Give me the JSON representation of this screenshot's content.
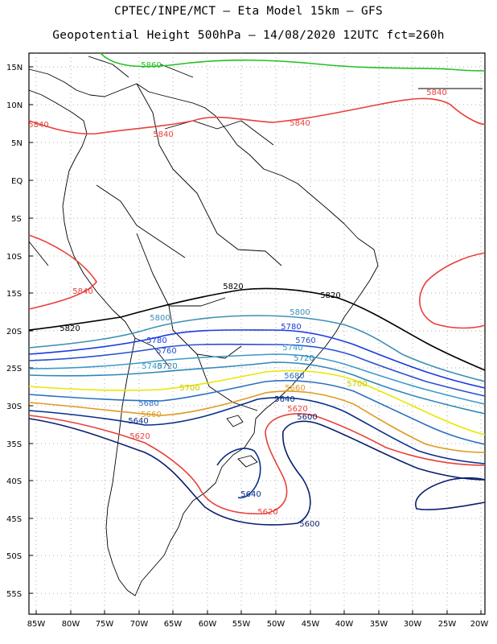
{
  "title": {
    "line1": "CPTEC/INPE/MCT –  Eta Model 15km – GFS",
    "line2": "Geopotential Height 500hPa – 14/08/2020 12UTC fct=260h"
  },
  "axes": {
    "lat_ticks": [
      "15N",
      "10N",
      "5N",
      "EQ",
      "5S",
      "10S",
      "15S",
      "20S",
      "25S",
      "30S",
      "35S",
      "40S",
      "45S",
      "50S",
      "55S"
    ],
    "lon_ticks": [
      "85W",
      "80W",
      "75W",
      "70W",
      "65W",
      "60W",
      "55W",
      "50W",
      "45W",
      "40W",
      "35W",
      "30W",
      "25W",
      "20W"
    ]
  },
  "contour_colors": {
    "5560": "#0a1e6e",
    "5600": "#0a1e6e",
    "5620": "#e8413a",
    "5640": "#0a2e8a",
    "5660": "#1a5aa8",
    "5680": "#2a70c0",
    "5700": "#e8e800",
    "5720": "#2e87b8",
    "5740": "#3c9ac8",
    "5760": "#2850d0",
    "5780": "#1a3ae0",
    "5800": "#3a8fb5",
    "5820": "#000000",
    "5840": "#e8413a",
    "5860": "#22c022",
    "orange": "#e09a20"
  },
  "contour_labels": [
    {
      "text": "5860",
      "color": "#22c022"
    },
    {
      "text": "5840",
      "color": "#e8413a"
    },
    {
      "text": "5840",
      "color": "#e8413a"
    },
    {
      "text": "5840",
      "color": "#e8413a"
    },
    {
      "text": "5840",
      "color": "#e8413a"
    },
    {
      "text": "5840",
      "color": "#e8413a"
    },
    {
      "text": "5820",
      "color": "#000000"
    },
    {
      "text": "5820",
      "color": "#000000"
    },
    {
      "text": "5820",
      "color": "#000000"
    },
    {
      "text": "5800",
      "color": "#3a8fb5"
    },
    {
      "text": "5800",
      "color": "#3a8fb5"
    },
    {
      "text": "5780",
      "color": "#1a3ae0"
    },
    {
      "text": "5780",
      "color": "#1a3ae0"
    },
    {
      "text": "5760",
      "color": "#2850d0"
    },
    {
      "text": "5760",
      "color": "#2850d0"
    },
    {
      "text": "5740",
      "color": "#3c9ac8"
    },
    {
      "text": "5740",
      "color": "#3c9ac8"
    },
    {
      "text": "5720",
      "color": "#2e87b8"
    },
    {
      "text": "5720",
      "color": "#2e87b8"
    },
    {
      "text": "5700",
      "color": "#c8c800"
    },
    {
      "text": "5700",
      "color": "#c8c800"
    },
    {
      "text": "5680",
      "color": "#2a70c0"
    },
    {
      "text": "5680",
      "color": "#2a70c0"
    },
    {
      "text": "5660",
      "color": "#e09a20"
    },
    {
      "text": "5660",
      "color": "#e09a20"
    },
    {
      "text": "5640",
      "color": "#0a2e8a"
    },
    {
      "text": "5640",
      "color": "#0a2e8a"
    },
    {
      "text": "5640",
      "color": "#0a2e8a"
    },
    {
      "text": "5620",
      "color": "#e8413a"
    },
    {
      "text": "5620",
      "color": "#e8413a"
    },
    {
      "text": "5620",
      "color": "#e8413a"
    },
    {
      "text": "5600",
      "color": "#0a1e6e"
    },
    {
      "text": "5600",
      "color": "#0a1e6e"
    }
  ]
}
